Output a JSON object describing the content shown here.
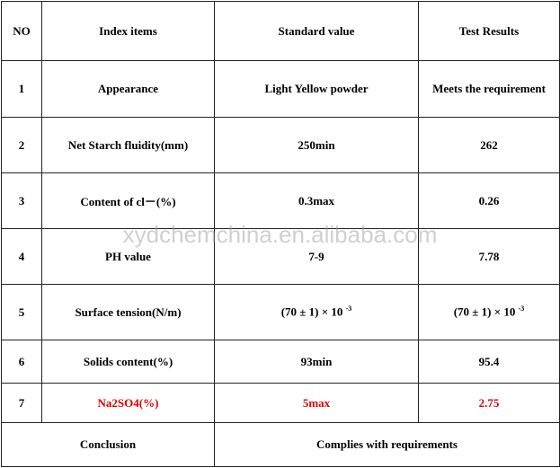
{
  "headers": [
    "NO",
    "Index items",
    "Standard value",
    "Test Results"
  ],
  "rows": [
    {
      "no": "1",
      "item": "Appearance",
      "standard": "Light Yellow powder",
      "result": "Meets the requirement"
    },
    {
      "no": "2",
      "item": "Net Starch fluidity(mm)",
      "standard": "250min",
      "result": "262"
    },
    {
      "no": "3",
      "item": "Content of cl－(%)",
      "standard": "0.3max",
      "result": "0.26"
    },
    {
      "no": "4",
      "item": "PH value",
      "standard": "7-9",
      "result": "7.78"
    },
    {
      "no": "5",
      "item": "Surface tension(N/m)",
      "standard": "(70 ± 1) × 10",
      "standard_exp": "-3",
      "result": "(70 ± 1) × 10",
      "result_exp": "-3"
    },
    {
      "no": "6",
      "item": "Solids content(%)",
      "standard": "93min",
      "result": "95.4"
    },
    {
      "no": "7",
      "item": "Na2SO4(%)",
      "standard": "5max",
      "result": "2.75"
    }
  ],
  "conclusion": {
    "label": "Conclusion",
    "value": "Complies with requirements"
  },
  "watermark": "xydchemchina.en.alibaba.com",
  "colors": {
    "highlight_row": "#e00000"
  }
}
